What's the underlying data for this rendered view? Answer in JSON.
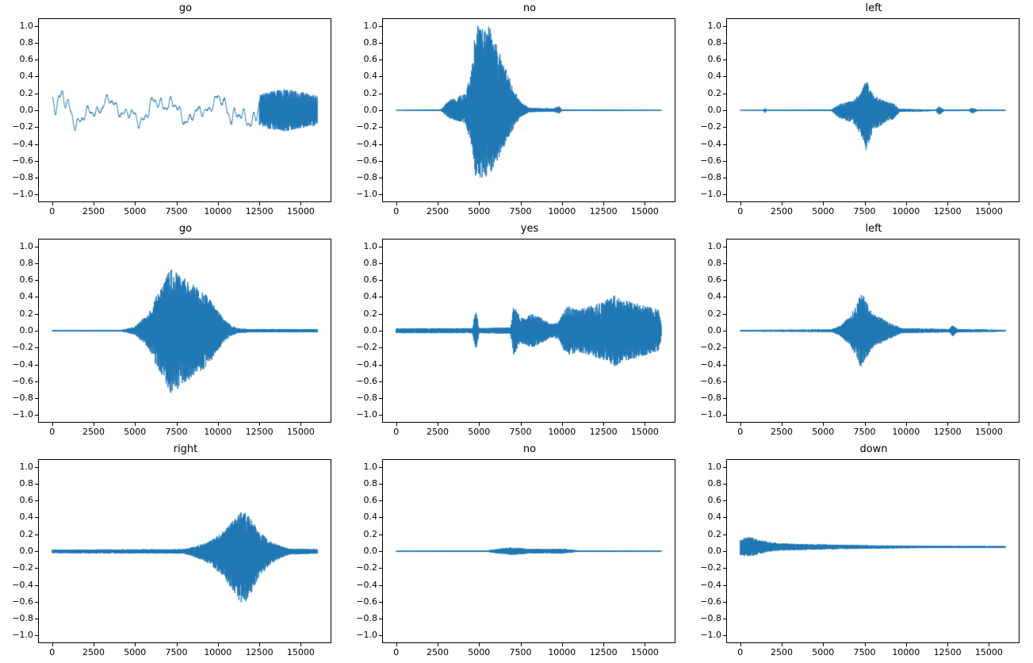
{
  "figure": {
    "background": "#ffffff",
    "line_color": "#1f77b4",
    "rows": 3,
    "cols": 3
  },
  "axes": {
    "xlim": [
      -800,
      16800
    ],
    "ylim": [
      -1.08,
      1.08
    ],
    "xticks": [
      0,
      2500,
      5000,
      7500,
      10000,
      12500,
      15000
    ],
    "xtick_labels": [
      "0",
      "2500",
      "5000",
      "7500",
      "10000",
      "12500",
      "15000"
    ],
    "yticks": [
      1.0,
      0.8,
      0.6,
      0.4,
      0.2,
      0.0,
      -0.2,
      -0.4,
      -0.6,
      -0.8,
      -1.0
    ],
    "ytick_labels": [
      "1.0",
      "0.8",
      "0.6",
      "0.4",
      "0.2",
      "0.0",
      "−0.2",
      "−0.4",
      "−0.6",
      "−0.8",
      "−1.0"
    ],
    "grid": false,
    "legend": "none"
  },
  "chart_data": [
    {
      "type": "line",
      "title": "go",
      "x_range": [
        0,
        16000
      ],
      "ylim": [
        -1.08,
        1.08
      ],
      "style": "smooth-then-dense",
      "smooth_until": 12500,
      "offset": 0,
      "asym": [
        1.0,
        1.0
      ],
      "seed": 11,
      "envelope": [
        [
          0,
          0.16
        ],
        [
          400,
          0.2
        ],
        [
          900,
          0.16
        ],
        [
          2000,
          0.1
        ],
        [
          4000,
          0.09
        ],
        [
          5500,
          0.12
        ],
        [
          7500,
          0.11
        ],
        [
          9500,
          0.08
        ],
        [
          10800,
          0.15
        ],
        [
          11800,
          0.12
        ],
        [
          12500,
          0.18
        ],
        [
          13000,
          0.22
        ],
        [
          14000,
          0.25
        ],
        [
          15000,
          0.22
        ],
        [
          16000,
          0.18
        ]
      ]
    },
    {
      "type": "line",
      "title": "no",
      "x_range": [
        0,
        16000
      ],
      "ylim": [
        -1.08,
        1.08
      ],
      "style": "dense",
      "offset": 0,
      "asym": [
        1.0,
        0.8
      ],
      "seed": 22,
      "envelope": [
        [
          0,
          0.004
        ],
        [
          2700,
          0.01
        ],
        [
          3200,
          0.12
        ],
        [
          4200,
          0.2
        ],
        [
          4600,
          0.6
        ],
        [
          4800,
          1.0
        ],
        [
          5600,
          1.0
        ],
        [
          6000,
          0.8
        ],
        [
          6500,
          0.55
        ],
        [
          7000,
          0.3
        ],
        [
          7500,
          0.1
        ],
        [
          8000,
          0.03
        ],
        [
          9500,
          0.02
        ],
        [
          9800,
          0.05
        ],
        [
          10000,
          0.01
        ],
        [
          16000,
          0.004
        ]
      ]
    },
    {
      "type": "line",
      "title": "left",
      "x_range": [
        0,
        16000
      ],
      "ylim": [
        -1.08,
        1.08
      ],
      "style": "dense",
      "offset": 0,
      "asym": [
        0.75,
        1.0
      ],
      "seed": 33,
      "envelope": [
        [
          0,
          0.004
        ],
        [
          1400,
          0.005
        ],
        [
          1500,
          0.035
        ],
        [
          1600,
          0.005
        ],
        [
          5500,
          0.01
        ],
        [
          6000,
          0.1
        ],
        [
          6800,
          0.15
        ],
        [
          7300,
          0.3
        ],
        [
          7600,
          0.48
        ],
        [
          8000,
          0.25
        ],
        [
          8700,
          0.15
        ],
        [
          9300,
          0.1
        ],
        [
          9600,
          0.02
        ],
        [
          11800,
          0.01
        ],
        [
          12000,
          0.06
        ],
        [
          12300,
          0.01
        ],
        [
          13800,
          0.01
        ],
        [
          14000,
          0.04
        ],
        [
          14300,
          0.01
        ],
        [
          16000,
          0.006
        ]
      ]
    },
    {
      "type": "line",
      "title": "go",
      "x_range": [
        0,
        16000
      ],
      "ylim": [
        -1.08,
        1.08
      ],
      "style": "dense",
      "offset": 0,
      "asym": [
        1.0,
        1.0
      ],
      "seed": 44,
      "envelope": [
        [
          0,
          0.006
        ],
        [
          4200,
          0.01
        ],
        [
          5000,
          0.05
        ],
        [
          5800,
          0.2
        ],
        [
          6500,
          0.5
        ],
        [
          7200,
          0.76
        ],
        [
          7800,
          0.65
        ],
        [
          8500,
          0.55
        ],
        [
          9200,
          0.45
        ],
        [
          9800,
          0.3
        ],
        [
          10300,
          0.15
        ],
        [
          10800,
          0.06
        ],
        [
          11200,
          0.03
        ],
        [
          12000,
          0.02
        ],
        [
          16000,
          0.02
        ]
      ]
    },
    {
      "type": "line",
      "title": "yes",
      "x_range": [
        0,
        16000
      ],
      "ylim": [
        -1.08,
        1.08
      ],
      "style": "dense",
      "offset": 0,
      "asym": [
        1.0,
        1.0
      ],
      "seed": 55,
      "envelope": [
        [
          0,
          0.03
        ],
        [
          4600,
          0.03
        ],
        [
          4800,
          0.27
        ],
        [
          5000,
          0.03
        ],
        [
          6900,
          0.04
        ],
        [
          7100,
          0.3
        ],
        [
          7500,
          0.15
        ],
        [
          8200,
          0.2
        ],
        [
          8800,
          0.15
        ],
        [
          9300,
          0.08
        ],
        [
          9800,
          0.1
        ],
        [
          10300,
          0.3
        ],
        [
          11000,
          0.25
        ],
        [
          11800,
          0.3
        ],
        [
          12500,
          0.35
        ],
        [
          13200,
          0.42
        ],
        [
          14000,
          0.35
        ],
        [
          15000,
          0.3
        ],
        [
          15800,
          0.25
        ],
        [
          16000,
          0.1
        ]
      ]
    },
    {
      "type": "line",
      "title": "left",
      "x_range": [
        0,
        16000
      ],
      "ylim": [
        -1.08,
        1.08
      ],
      "style": "dense",
      "offset": 0,
      "asym": [
        1.0,
        1.0
      ],
      "seed": 66,
      "envelope": [
        [
          0,
          0.01
        ],
        [
          5500,
          0.015
        ],
        [
          6000,
          0.06
        ],
        [
          6500,
          0.15
        ],
        [
          7000,
          0.3
        ],
        [
          7300,
          0.46
        ],
        [
          7600,
          0.35
        ],
        [
          8000,
          0.2
        ],
        [
          8500,
          0.15
        ],
        [
          9200,
          0.08
        ],
        [
          9700,
          0.03
        ],
        [
          12600,
          0.02
        ],
        [
          12800,
          0.07
        ],
        [
          13100,
          0.02
        ],
        [
          16000,
          0.01
        ]
      ]
    },
    {
      "type": "line",
      "title": "right",
      "x_range": [
        0,
        16000
      ],
      "ylim": [
        -1.08,
        1.08
      ],
      "style": "dense",
      "offset": 0,
      "asym": [
        0.77,
        1.0
      ],
      "seed": 77,
      "envelope": [
        [
          0,
          0.025
        ],
        [
          8000,
          0.03
        ],
        [
          8700,
          0.08
        ],
        [
          9500,
          0.15
        ],
        [
          10300,
          0.3
        ],
        [
          11000,
          0.5
        ],
        [
          11500,
          0.65
        ],
        [
          12000,
          0.5
        ],
        [
          12500,
          0.3
        ],
        [
          13200,
          0.15
        ],
        [
          13800,
          0.08
        ],
        [
          14300,
          0.04
        ],
        [
          16000,
          0.03
        ]
      ]
    },
    {
      "type": "line",
      "title": "no",
      "x_range": [
        0,
        16000
      ],
      "ylim": [
        -1.08,
        1.08
      ],
      "style": "dense",
      "offset": 0,
      "asym": [
        1.0,
        1.0
      ],
      "seed": 88,
      "envelope": [
        [
          0,
          0.005
        ],
        [
          5500,
          0.008
        ],
        [
          6200,
          0.03
        ],
        [
          7000,
          0.045
        ],
        [
          8000,
          0.03
        ],
        [
          9000,
          0.025
        ],
        [
          10000,
          0.03
        ],
        [
          10500,
          0.02
        ],
        [
          11000,
          0.008
        ],
        [
          16000,
          0.005
        ]
      ]
    },
    {
      "type": "line",
      "title": "down",
      "x_range": [
        0,
        16000
      ],
      "ylim": [
        -1.08,
        1.08
      ],
      "style": "dense",
      "offset": 0.05,
      "asym": [
        1.0,
        1.0
      ],
      "seed": 99,
      "envelope": [
        [
          0,
          0.1
        ],
        [
          600,
          0.12
        ],
        [
          1200,
          0.08
        ],
        [
          2000,
          0.05
        ],
        [
          3000,
          0.04
        ],
        [
          5000,
          0.03
        ],
        [
          8000,
          0.02
        ],
        [
          12000,
          0.012
        ],
        [
          16000,
          0.01
        ]
      ]
    }
  ]
}
